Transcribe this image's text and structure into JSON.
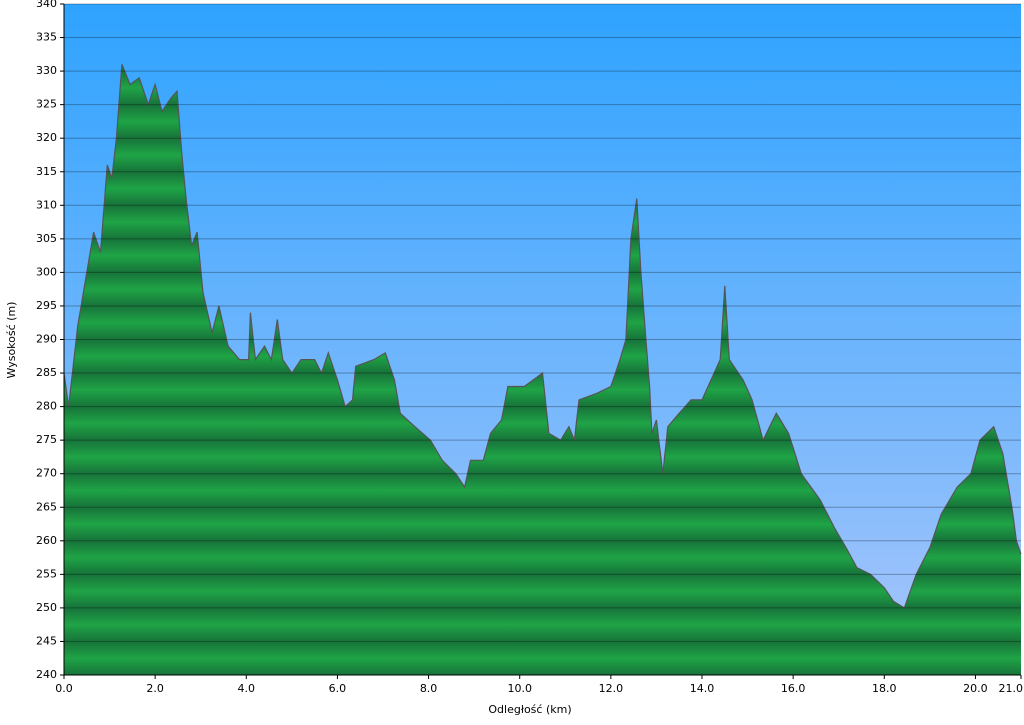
{
  "chart_data": {
    "type": "area",
    "x_label": "Odległość   (km)",
    "y_label": "Wysokość (m)",
    "x": [
      0.0,
      0.1,
      0.3,
      0.5,
      0.65,
      0.8,
      0.95,
      1.05,
      1.15,
      1.27,
      1.45,
      1.65,
      1.85,
      2.0,
      2.15,
      2.35,
      2.48,
      2.58,
      2.68,
      2.8,
      2.92,
      3.05,
      3.25,
      3.4,
      3.6,
      3.85,
      4.05,
      4.09,
      4.2,
      4.4,
      4.55,
      4.68,
      4.8,
      5.0,
      5.2,
      5.5,
      5.65,
      5.8,
      6.0,
      6.17,
      6.33,
      6.4,
      6.8,
      7.05,
      7.25,
      7.38,
      7.7,
      8.04,
      8.3,
      8.6,
      8.79,
      8.92,
      9.2,
      9.36,
      9.6,
      9.74,
      10.1,
      10.5,
      10.64,
      10.9,
      11.08,
      11.2,
      11.3,
      11.7,
      12.0,
      12.2,
      12.33,
      12.44,
      12.57,
      12.66,
      12.77,
      12.85,
      12.9,
      13.0,
      13.14,
      13.25,
      13.5,
      13.76,
      14.0,
      14.2,
      14.4,
      14.5,
      14.6,
      14.9,
      15.1,
      15.34,
      15.63,
      15.9,
      16.18,
      16.6,
      16.9,
      17.16,
      17.4,
      17.7,
      18.0,
      18.2,
      18.44,
      18.7,
      19.0,
      19.25,
      19.6,
      19.9,
      20.1,
      20.4,
      20.6,
      20.8,
      20.9,
      21.0
    ],
    "values": [
      285,
      280,
      292,
      300,
      306,
      303,
      316,
      314,
      320,
      331,
      328,
      329,
      325,
      328,
      324,
      326,
      327,
      318,
      311,
      304,
      306,
      297,
      291,
      295,
      289,
      287,
      287,
      294,
      287,
      289,
      287,
      293,
      287,
      285,
      287,
      287,
      285,
      288,
      284,
      280,
      281,
      286,
      287,
      288,
      284,
      279,
      277,
      275,
      272,
      270,
      268,
      272,
      272,
      276,
      278,
      283,
      283,
      285,
      276,
      275,
      277,
      275,
      281,
      282,
      283,
      287,
      290,
      305,
      311,
      300,
      290,
      283,
      276,
      278,
      270,
      277,
      279,
      281,
      281,
      284,
      287,
      298,
      287,
      284,
      281,
      275,
      279,
      276,
      270,
      266,
      262,
      259,
      256,
      255,
      253,
      251,
      250,
      255,
      259,
      264,
      268,
      270,
      275,
      277,
      273,
      265,
      260,
      258
    ],
    "color": "#1fa446",
    "xlim": [
      0,
      21
    ],
    "ylim": [
      240,
      340
    ],
    "xticks": [
      {
        "value": 0,
        "label": "0.0"
      },
      {
        "value": 2,
        "label": "2.0"
      },
      {
        "value": 4,
        "label": "4.0"
      },
      {
        "value": 6,
        "label": "6.0"
      },
      {
        "value": 8,
        "label": "8.0"
      },
      {
        "value": 10,
        "label": "10.0"
      },
      {
        "value": 12,
        "label": "12.0"
      },
      {
        "value": 14,
        "label": "14.0"
      },
      {
        "value": 16,
        "label": "16.0"
      },
      {
        "value": 18,
        "label": "18.0"
      },
      {
        "value": 20,
        "label": "20.0"
      },
      {
        "value": 21,
        "label": "21.0"
      }
    ],
    "yticks": [
      240,
      245,
      250,
      255,
      260,
      265,
      270,
      275,
      280,
      285,
      290,
      295,
      300,
      305,
      310,
      315,
      320,
      325,
      330,
      335,
      340
    ],
    "grid": true
  }
}
